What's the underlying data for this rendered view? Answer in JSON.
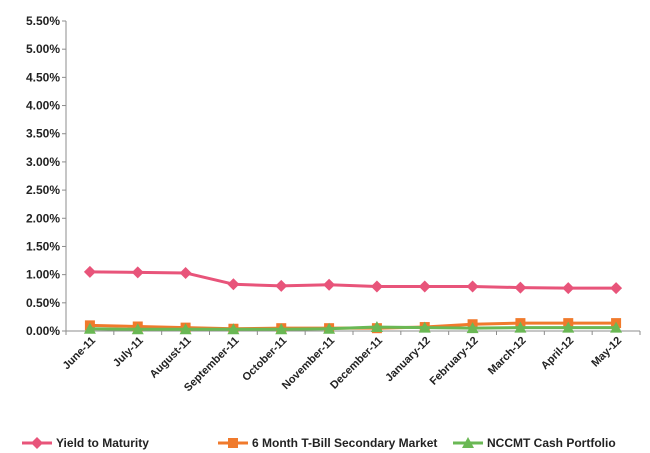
{
  "chart_data": {
    "type": "line",
    "title": "",
    "xlabel": "",
    "ylabel": "",
    "categories": [
      "June-11",
      "July-11",
      "August-11",
      "September-11",
      "October-11",
      "November-11",
      "December-11",
      "January-12",
      "February-12",
      "March-12",
      "April-12",
      "May-12"
    ],
    "ylim": [
      0,
      5.5
    ],
    "ytick_labels": [
      "0.00%",
      "0.50%",
      "1.00%",
      "1.50%",
      "2.00%",
      "2.50%",
      "3.00%",
      "3.50%",
      "4.00%",
      "4.50%",
      "5.00%",
      "5.50%"
    ],
    "grid": false,
    "legend_position": "bottom",
    "series": [
      {
        "name": "Yield to Maturity",
        "color": "#e8547a",
        "marker": "diamond",
        "values": [
          1.05,
          1.04,
          1.03,
          0.83,
          0.8,
          0.82,
          0.79,
          0.79,
          0.79,
          0.77,
          0.76,
          0.76
        ]
      },
      {
        "name": "6 Month T-Bill Secondary Market",
        "color": "#f07a2c",
        "marker": "square",
        "values": [
          0.1,
          0.08,
          0.06,
          0.04,
          0.05,
          0.05,
          0.05,
          0.07,
          0.12,
          0.14,
          0.14,
          0.14
        ]
      },
      {
        "name": "NCCMT Cash Portfolio",
        "color": "#6ab854",
        "marker": "triangle",
        "values": [
          0.04,
          0.03,
          0.03,
          0.03,
          0.03,
          0.04,
          0.07,
          0.06,
          0.05,
          0.06,
          0.06,
          0.06
        ]
      }
    ]
  }
}
